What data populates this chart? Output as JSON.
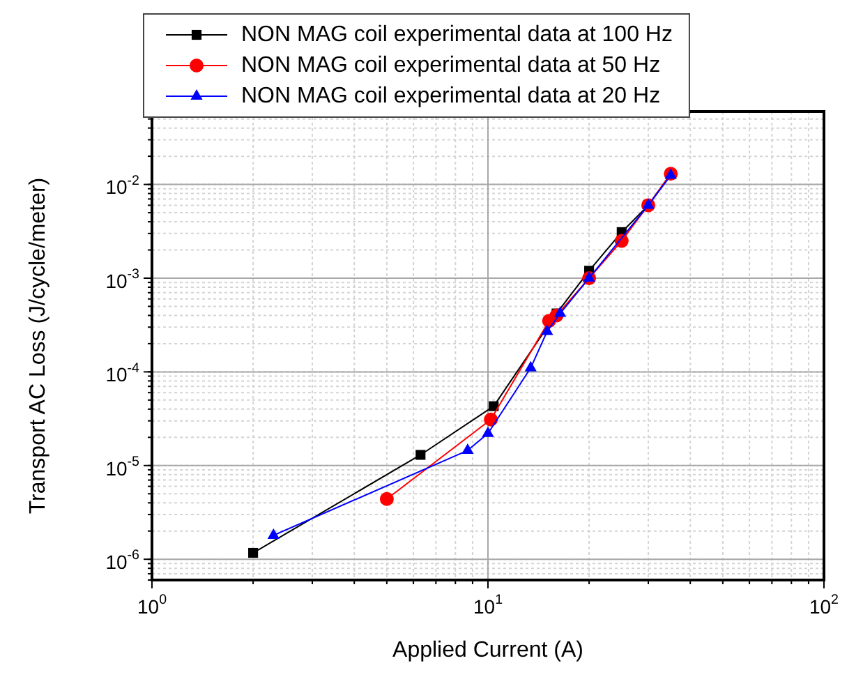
{
  "chart_data": {
    "type": "line",
    "xlabel": "Applied Current (A)",
    "ylabel": "Transport AC Loss (J/cycle/meter)",
    "log": "xy",
    "grid": true,
    "legend": "top left",
    "line_style": "solid",
    "xlim": [
      1,
      100
    ],
    "xticks": [
      {
        "value": 1,
        "label": "10$^{0}$"
      },
      {
        "value": 10,
        "label": "10$^{1}$"
      },
      {
        "value": 100,
        "label": "10$^{2}$"
      }
    ],
    "ylim": [
      6e-07,
      0.06
    ],
    "yticks": [
      {
        "value": 1e-06,
        "label": "10$^{-6}$"
      },
      {
        "value": 1e-05,
        "label": "10$^{-5}$"
      },
      {
        "value": 0.0001,
        "label": "10$^{-4}$"
      },
      {
        "value": 0.001,
        "label": "10$^{-3}$"
      },
      {
        "value": 0.01,
        "label": "10$^{-2}$"
      }
    ],
    "series": [
      {
        "name": "NON MAG coil experimental data at 100 Hz",
        "color": "#000000",
        "marker": "square",
        "x": [
          2,
          6.3,
          10.4,
          16,
          20,
          25,
          30,
          35
        ],
        "values": [
          1.17e-06,
          1.3e-05,
          4.3e-05,
          0.00042,
          0.0012,
          0.0031,
          0.006,
          0.013
        ]
      },
      {
        "name": "NON MAG coil experimental data at 50 Hz",
        "color": "#ff0000",
        "marker": "circle",
        "x": [
          5,
          10.2,
          15.2,
          16,
          20,
          25,
          30,
          35
        ],
        "values": [
          4.4e-06,
          3.1e-05,
          0.00035,
          0.0004,
          0.001,
          0.0025,
          0.006,
          0.013
        ]
      },
      {
        "name": "NON MAG coil experimental data at 20 Hz",
        "color": "#0000ff",
        "marker": "triangle",
        "x": [
          2.3,
          8.7,
          10,
          13.4,
          15,
          16.4,
          20,
          30,
          35
        ],
        "values": [
          1.8e-06,
          1.45e-05,
          2.2e-05,
          0.00011,
          0.00027,
          0.00042,
          0.001,
          0.006,
          0.0125
        ]
      }
    ]
  }
}
